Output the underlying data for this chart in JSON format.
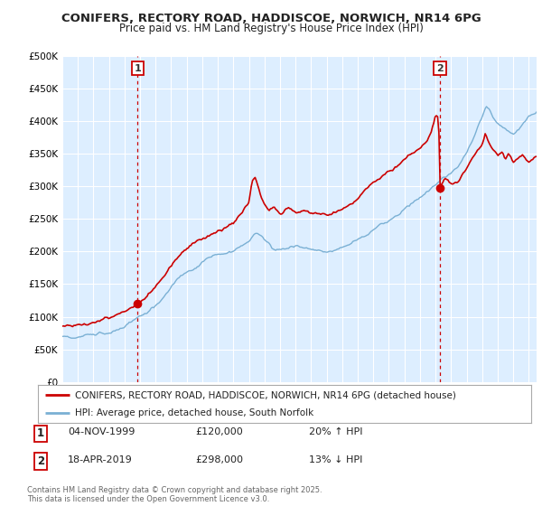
{
  "title_line1": "CONIFERS, RECTORY ROAD, HADDISCOE, NORWICH, NR14 6PG",
  "title_line2": "Price paid vs. HM Land Registry's House Price Index (HPI)",
  "legend_line1": "CONIFERS, RECTORY ROAD, HADDISCOE, NORWICH, NR14 6PG (detached house)",
  "legend_line2": "HPI: Average price, detached house, South Norfolk",
  "footnote": "Contains HM Land Registry data © Crown copyright and database right 2025.\nThis data is licensed under the Open Government Licence v3.0.",
  "annotation1_label": "1",
  "annotation1_date": "04-NOV-1999",
  "annotation1_price": "£120,000",
  "annotation1_hpi": "20% ↑ HPI",
  "annotation2_label": "2",
  "annotation2_date": "18-APR-2019",
  "annotation2_price": "£298,000",
  "annotation2_hpi": "13% ↓ HPI",
  "red_color": "#cc0000",
  "blue_color": "#7ab0d4",
  "plot_bg_color": "#ddeeff",
  "grid_color": "#ffffff",
  "background_color": "#ffffff",
  "ylim": [
    0,
    500000
  ],
  "yticks": [
    0,
    50000,
    100000,
    150000,
    200000,
    250000,
    300000,
    350000,
    400000,
    450000,
    500000
  ],
  "ytick_labels": [
    "£0",
    "£50K",
    "£100K",
    "£150K",
    "£200K",
    "£250K",
    "£300K",
    "£350K",
    "£400K",
    "£450K",
    "£500K"
  ],
  "xmin": 1995.0,
  "xmax": 2025.5,
  "sale1_x": 1999.85,
  "sale1_y": 120000,
  "sale2_x": 2019.29,
  "sale2_y": 298000,
  "hpi_keypoints": [
    [
      1995.0,
      70000
    ],
    [
      1995.5,
      70500
    ],
    [
      1996.0,
      72000
    ],
    [
      1996.5,
      74000
    ],
    [
      1997.0,
      76000
    ],
    [
      1997.5,
      79000
    ],
    [
      1998.0,
      82000
    ],
    [
      1998.5,
      86000
    ],
    [
      1999.0,
      90000
    ],
    [
      1999.5,
      96000
    ],
    [
      2000.0,
      103000
    ],
    [
      2000.5,
      111000
    ],
    [
      2001.0,
      120000
    ],
    [
      2001.5,
      133000
    ],
    [
      2002.0,
      148000
    ],
    [
      2002.5,
      162000
    ],
    [
      2003.0,
      172000
    ],
    [
      2003.5,
      178000
    ],
    [
      2004.0,
      185000
    ],
    [
      2004.5,
      190000
    ],
    [
      2005.0,
      192000
    ],
    [
      2005.5,
      194000
    ],
    [
      2006.0,
      200000
    ],
    [
      2006.5,
      208000
    ],
    [
      2007.0,
      218000
    ],
    [
      2007.25,
      228000
    ],
    [
      2007.5,
      232000
    ],
    [
      2007.75,
      228000
    ],
    [
      2008.0,
      220000
    ],
    [
      2008.5,
      210000
    ],
    [
      2009.0,
      208000
    ],
    [
      2009.5,
      212000
    ],
    [
      2010.0,
      218000
    ],
    [
      2010.5,
      215000
    ],
    [
      2011.0,
      212000
    ],
    [
      2011.5,
      210000
    ],
    [
      2012.0,
      208000
    ],
    [
      2012.5,
      210000
    ],
    [
      2013.0,
      213000
    ],
    [
      2013.5,
      218000
    ],
    [
      2014.0,
      225000
    ],
    [
      2014.5,
      232000
    ],
    [
      2015.0,
      240000
    ],
    [
      2015.5,
      248000
    ],
    [
      2016.0,
      255000
    ],
    [
      2016.5,
      262000
    ],
    [
      2017.0,
      272000
    ],
    [
      2017.5,
      280000
    ],
    [
      2018.0,
      290000
    ],
    [
      2018.5,
      298000
    ],
    [
      2019.0,
      308000
    ],
    [
      2019.5,
      318000
    ],
    [
      2020.0,
      325000
    ],
    [
      2020.5,
      338000
    ],
    [
      2021.0,
      358000
    ],
    [
      2021.5,
      385000
    ],
    [
      2022.0,
      415000
    ],
    [
      2022.25,
      430000
    ],
    [
      2022.5,
      425000
    ],
    [
      2022.75,
      415000
    ],
    [
      2023.0,
      405000
    ],
    [
      2023.5,
      398000
    ],
    [
      2024.0,
      390000
    ],
    [
      2024.5,
      400000
    ],
    [
      2025.0,
      415000
    ],
    [
      2025.5,
      425000
    ]
  ],
  "red_keypoints": [
    [
      1995.0,
      85000
    ],
    [
      1995.5,
      86500
    ],
    [
      1996.0,
      88000
    ],
    [
      1996.5,
      90000
    ],
    [
      1997.0,
      92000
    ],
    [
      1997.5,
      95000
    ],
    [
      1998.0,
      98000
    ],
    [
      1998.5,
      102000
    ],
    [
      1999.0,
      106000
    ],
    [
      1999.5,
      113000
    ],
    [
      1999.85,
      120000
    ],
    [
      2000.0,
      122000
    ],
    [
      2000.5,
      130000
    ],
    [
      2001.0,
      140000
    ],
    [
      2001.5,
      155000
    ],
    [
      2002.0,
      170000
    ],
    [
      2002.5,
      183000
    ],
    [
      2003.0,
      195000
    ],
    [
      2003.5,
      205000
    ],
    [
      2004.0,
      215000
    ],
    [
      2004.5,
      222000
    ],
    [
      2005.0,
      228000
    ],
    [
      2005.5,
      232000
    ],
    [
      2006.0,
      240000
    ],
    [
      2006.5,
      255000
    ],
    [
      2007.0,
      272000
    ],
    [
      2007.2,
      305000
    ],
    [
      2007.4,
      310000
    ],
    [
      2007.6,
      295000
    ],
    [
      2007.8,
      278000
    ],
    [
      2008.0,
      268000
    ],
    [
      2008.3,
      258000
    ],
    [
      2008.6,
      265000
    ],
    [
      2009.0,
      255000
    ],
    [
      2009.3,
      262000
    ],
    [
      2009.5,
      268000
    ],
    [
      2010.0,
      258000
    ],
    [
      2010.5,
      262000
    ],
    [
      2011.0,
      258000
    ],
    [
      2011.5,
      255000
    ],
    [
      2012.0,
      252000
    ],
    [
      2012.5,
      255000
    ],
    [
      2013.0,
      260000
    ],
    [
      2013.5,
      268000
    ],
    [
      2014.0,
      278000
    ],
    [
      2014.5,
      290000
    ],
    [
      2015.0,
      302000
    ],
    [
      2015.5,
      312000
    ],
    [
      2016.0,
      322000
    ],
    [
      2016.5,
      332000
    ],
    [
      2017.0,
      342000
    ],
    [
      2017.5,
      352000
    ],
    [
      2018.0,
      360000
    ],
    [
      2018.5,
      375000
    ],
    [
      2018.7,
      385000
    ],
    [
      2018.9,
      400000
    ],
    [
      2019.0,
      410000
    ],
    [
      2019.2,
      405000
    ],
    [
      2019.29,
      298000
    ],
    [
      2019.4,
      305000
    ],
    [
      2019.6,
      315000
    ],
    [
      2020.0,
      308000
    ],
    [
      2020.5,
      318000
    ],
    [
      2021.0,
      338000
    ],
    [
      2021.5,
      358000
    ],
    [
      2022.0,
      375000
    ],
    [
      2022.2,
      390000
    ],
    [
      2022.4,
      378000
    ],
    [
      2022.6,
      370000
    ],
    [
      2023.0,
      355000
    ],
    [
      2023.3,
      362000
    ],
    [
      2023.5,
      348000
    ],
    [
      2023.7,
      358000
    ],
    [
      2024.0,
      345000
    ],
    [
      2024.3,
      355000
    ],
    [
      2024.6,
      360000
    ],
    [
      2025.0,
      350000
    ],
    [
      2025.5,
      358000
    ]
  ]
}
